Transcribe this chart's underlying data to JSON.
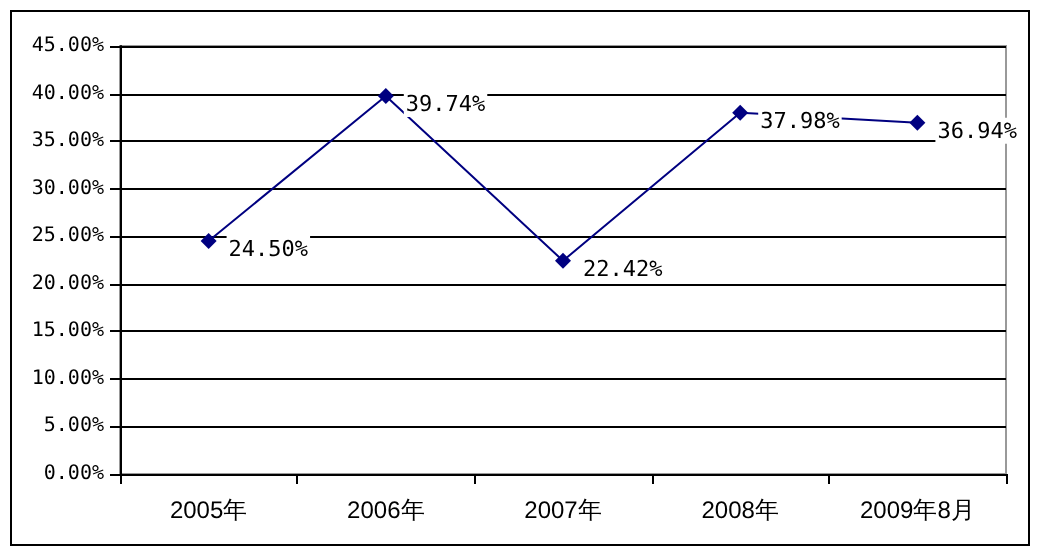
{
  "chart_data": {
    "type": "line",
    "categories": [
      "2005年",
      "2006年",
      "2007年",
      "2008年",
      "2009年8月"
    ],
    "series": [
      {
        "color": "#000080",
        "values": [
          24.5,
          39.74,
          22.42,
          37.98,
          36.94
        ],
        "value_labels": [
          "24.50%",
          "39.74%",
          "22.42%",
          "37.98%",
          "36.94%"
        ]
      }
    ],
    "ylim": [
      0,
      45
    ],
    "yticks": [
      {
        "value": 0,
        "label": "0.00%"
      },
      {
        "value": 5,
        "label": "5.00%"
      },
      {
        "value": 10,
        "label": "10.00%"
      },
      {
        "value": 15,
        "label": "15.00%"
      },
      {
        "value": 20,
        "label": "20.00%"
      },
      {
        "value": 25,
        "label": "25.00%"
      },
      {
        "value": 30,
        "label": "30.00%"
      },
      {
        "value": 35,
        "label": "35.00%"
      },
      {
        "value": 40,
        "label": "40.00%"
      },
      {
        "value": 45,
        "label": "45.00%"
      }
    ],
    "grid": "y",
    "marker": "diamond",
    "line_style": "solid"
  }
}
